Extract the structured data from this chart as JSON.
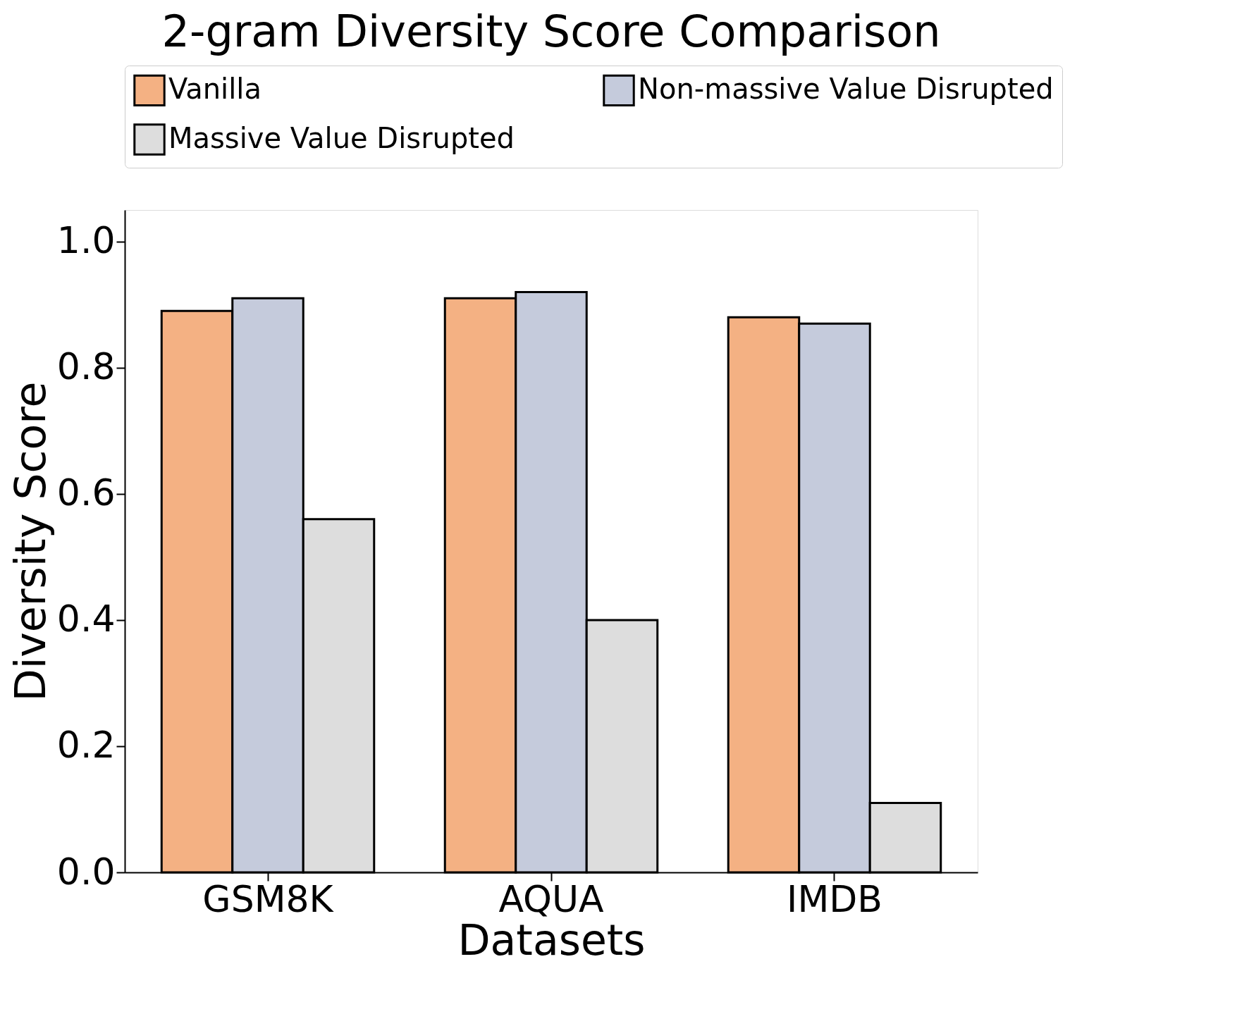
{
  "chart_data": {
    "type": "bar",
    "title": "2-gram Diversity Score Comparison",
    "xlabel": "Datasets",
    "ylabel": "Diversity Score",
    "categories": [
      "GSM8K",
      "AQUA",
      "IMDB"
    ],
    "series": [
      {
        "name": "Vanilla",
        "color": "#f4b183",
        "values": [
          0.89,
          0.91,
          0.88
        ]
      },
      {
        "name": "Non-massive Value Disrupted",
        "color": "#c5cbdc",
        "values": [
          0.91,
          0.92,
          0.87
        ]
      },
      {
        "name": "Massive Value Disrupted",
        "color": "#dddddd",
        "values": [
          0.56,
          0.4,
          0.11
        ]
      }
    ],
    "ylim": [
      0,
      1.05
    ],
    "yticks": [
      {
        "value": 0,
        "label": "0.0"
      },
      0.2,
      0.4,
      0.6,
      0.8,
      {
        "value": 1,
        "label": "1.0"
      }
    ],
    "grid": false,
    "legend": "top"
  }
}
